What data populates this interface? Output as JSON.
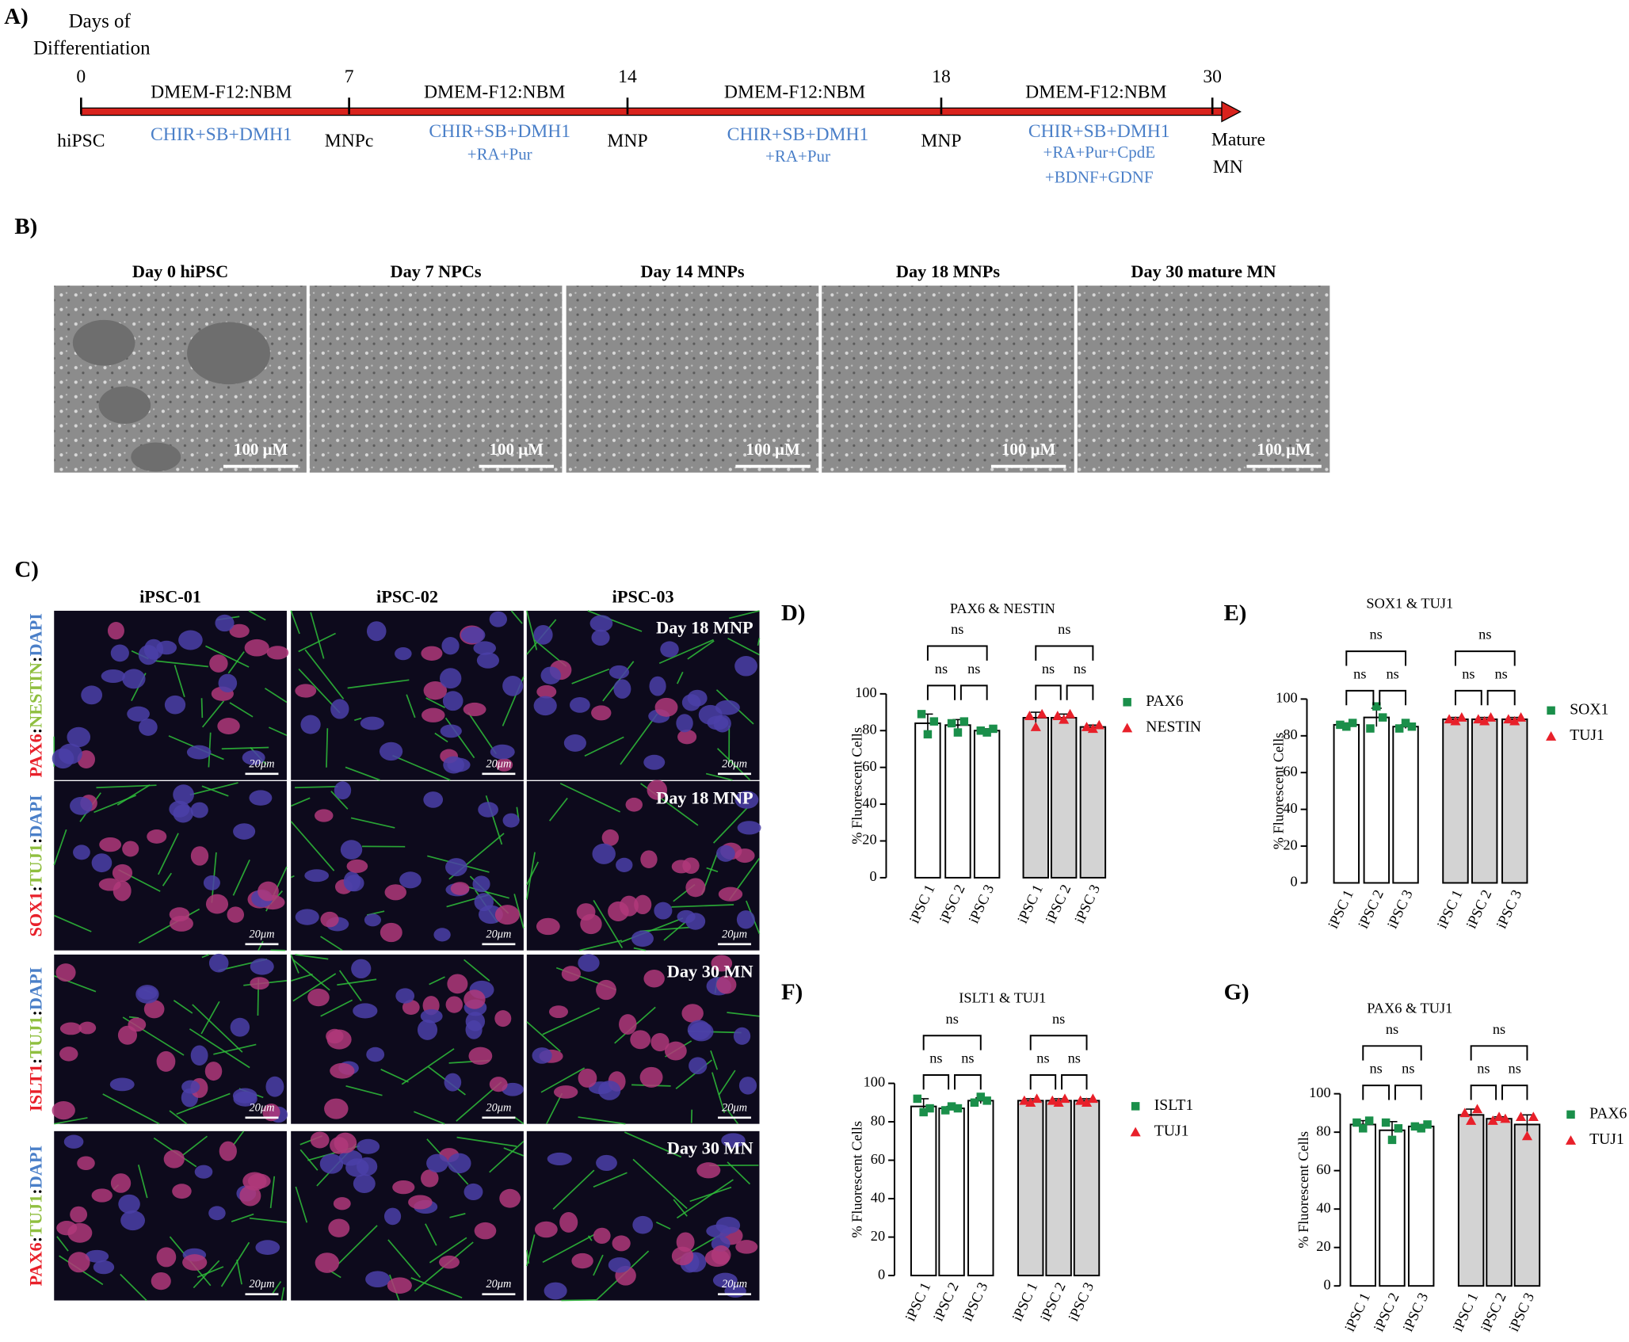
{
  "panel_a": {
    "label": "A)",
    "heading": [
      "Days of",
      "Differentiation"
    ],
    "days": [
      0,
      7,
      14,
      18,
      30
    ],
    "media": [
      "DMEM-F12:NBM",
      "DMEM-F12:NBM",
      "DMEM-F12:NBM",
      "DMEM-F12:NBM"
    ],
    "stages": [
      "hiPSC",
      "MNPc",
      "MNP",
      "MNP"
    ],
    "final_stage": [
      "Mature",
      "MN"
    ],
    "treatments": [
      [
        "CHIR+SB+DMH1"
      ],
      [
        "CHIR+SB+DMH1",
        "+RA+Pur"
      ],
      [
        "CHIR+SB+DMH1",
        "+RA+Pur"
      ],
      [
        "CHIR+SB+DMH1",
        "+RA+Pur+CpdE",
        "+BDNF+GDNF"
      ]
    ]
  },
  "panel_b": {
    "label": "B)",
    "titles": [
      "Day 0 hiPSC",
      "Day 7 NPCs",
      "Day 14 MNPs",
      "Day 18 MNPs",
      "Day 30 mature MN"
    ],
    "scale_bar": "100 μM"
  },
  "panel_c": {
    "label": "C)",
    "columns": [
      "iPSC-01",
      "iPSC-02",
      "iPSC-03"
    ],
    "separator": ":",
    "rows": [
      [
        "PAX6",
        "NESTIN",
        "DAPI"
      ],
      [
        "SOX1",
        "TUJ1",
        "DAPI"
      ],
      [
        "ISLT1",
        "TUJ1",
        "DAPI"
      ],
      [
        "PAX6",
        "TUJ1",
        "DAPI"
      ]
    ],
    "stain_colors": [
      "#e8202a",
      "#8fbf3f",
      "#4a7fc8"
    ],
    "row_tags": [
      "Day 18 MNP",
      "Day 18 MNP",
      "Day 30 MN",
      "Day 30 MN"
    ],
    "scale_bar": "20μm"
  },
  "chart_data": [
    {
      "type": "bar",
      "label": "D)",
      "title": "PAX6 & NESTIN",
      "y_label": "% Fluorescent Cells",
      "categories": [
        "iPSC 1",
        "iPSC 2",
        "iPSC 3"
      ],
      "ylim": [
        0,
        100
      ],
      "yticks": [
        0,
        20,
        40,
        60,
        80,
        100
      ],
      "annotations": [
        "ns",
        "ns",
        "ns",
        "ns",
        "ns",
        "ns"
      ],
      "series": [
        {
          "name": "PAX6",
          "color": "#1a8f4a",
          "marker": "square",
          "bar_fill": "#ffffff",
          "values": [
            84,
            83,
            80
          ],
          "errors": [
            5,
            3,
            1
          ],
          "points": [
            [
              89,
              78,
              85
            ],
            [
              84,
              79,
              85
            ],
            [
              80,
              79,
              81
            ]
          ]
        },
        {
          "name": "NESTIN",
          "color": "#e8202a",
          "marker": "triangle",
          "bar_fill": "#d3d3d3",
          "values": [
            87,
            87,
            82
          ],
          "errors": [
            3,
            2,
            1
          ],
          "points": [
            [
              88,
              82,
              89
            ],
            [
              88,
              86,
              89
            ],
            [
              82,
              81,
              83
            ]
          ]
        }
      ]
    },
    {
      "type": "bar",
      "label": "E)",
      "title": "SOX1 & TUJ1",
      "y_label": "% Fluorescent Cells",
      "categories": [
        "iPSC 1",
        "iPSC 2",
        "iPSC 3"
      ],
      "ylim": [
        0,
        100
      ],
      "yticks": [
        0,
        20,
        40,
        60,
        80,
        100
      ],
      "annotations": [
        "ns",
        "ns",
        "ns",
        "ns",
        "ns",
        "ns"
      ],
      "series": [
        {
          "name": "SOX1",
          "color": "#1a8f4a",
          "marker": "square",
          "bar_fill": "#ffffff",
          "values": [
            86,
            90,
            85
          ],
          "errors": [
            1,
            5,
            1
          ],
          "points": [
            [
              86,
              85,
              87
            ],
            [
              84,
              96,
              90
            ],
            [
              84,
              87,
              85
            ]
          ]
        },
        {
          "name": "TUJ1",
          "color": "#e8202a",
          "marker": "triangle",
          "bar_fill": "#d3d3d3",
          "values": [
            89,
            89,
            89
          ],
          "errors": [
            1,
            1,
            1
          ],
          "points": [
            [
              89,
              88,
              90
            ],
            [
              89,
              88,
              90
            ],
            [
              89,
              88,
              90
            ]
          ]
        }
      ]
    },
    {
      "type": "bar",
      "label": "F)",
      "title": "ISLT1 & TUJ1",
      "y_label": "% Fluorescent Cells",
      "categories": [
        "iPSC 1",
        "iPSC 2",
        "iPSC 3"
      ],
      "ylim": [
        0,
        100
      ],
      "yticks": [
        0,
        20,
        40,
        60,
        80,
        100
      ],
      "annotations": [
        "ns",
        "ns",
        "ns",
        "ns",
        "ns",
        "ns"
      ],
      "series": [
        {
          "name": "ISLT1",
          "color": "#1a8f4a",
          "marker": "square",
          "bar_fill": "#ffffff",
          "values": [
            88,
            87,
            91
          ],
          "errors": [
            4,
            1,
            1.5
          ],
          "points": [
            [
              92,
              85,
              87
            ],
            [
              86,
              88,
              87
            ],
            [
              90,
              93,
              91
            ]
          ]
        },
        {
          "name": "TUJ1",
          "color": "#e8202a",
          "marker": "triangle",
          "bar_fill": "#d3d3d3",
          "values": [
            91,
            91,
            91
          ],
          "errors": [
            1,
            1,
            1
          ],
          "points": [
            [
              91,
              90,
              92
            ],
            [
              91,
              90,
              92
            ],
            [
              91,
              90,
              92
            ]
          ]
        }
      ]
    },
    {
      "type": "bar",
      "label": "G)",
      "title": "PAX6 & TUJ1",
      "y_label": "% Fluorescent Cells",
      "categories": [
        "iPSC 1",
        "iPSC 2",
        "iPSC 3"
      ],
      "ylim": [
        0,
        100
      ],
      "yticks": [
        0,
        20,
        40,
        60,
        80,
        100
      ],
      "annotations": [
        "ns",
        "ns",
        "ns",
        "ns",
        "ns",
        "ns"
      ],
      "series": [
        {
          "name": "PAX6",
          "color": "#1a8f4a",
          "marker": "square",
          "bar_fill": "#ffffff",
          "values": [
            84,
            81,
            83
          ],
          "errors": [
            2,
            4.5,
            1
          ],
          "points": [
            [
              85,
              82,
              86
            ],
            [
              85,
              76,
              82
            ],
            [
              83,
              82,
              84
            ]
          ]
        },
        {
          "name": "TUJ1",
          "color": "#e8202a",
          "marker": "triangle",
          "bar_fill": "#d3d3d3",
          "values": [
            89,
            87,
            84
          ],
          "errors": [
            3,
            1,
            5
          ],
          "points": [
            [
              90,
              86,
              92
            ],
            [
              86,
              88,
              87
            ],
            [
              88,
              78,
              88
            ]
          ]
        }
      ]
    }
  ]
}
